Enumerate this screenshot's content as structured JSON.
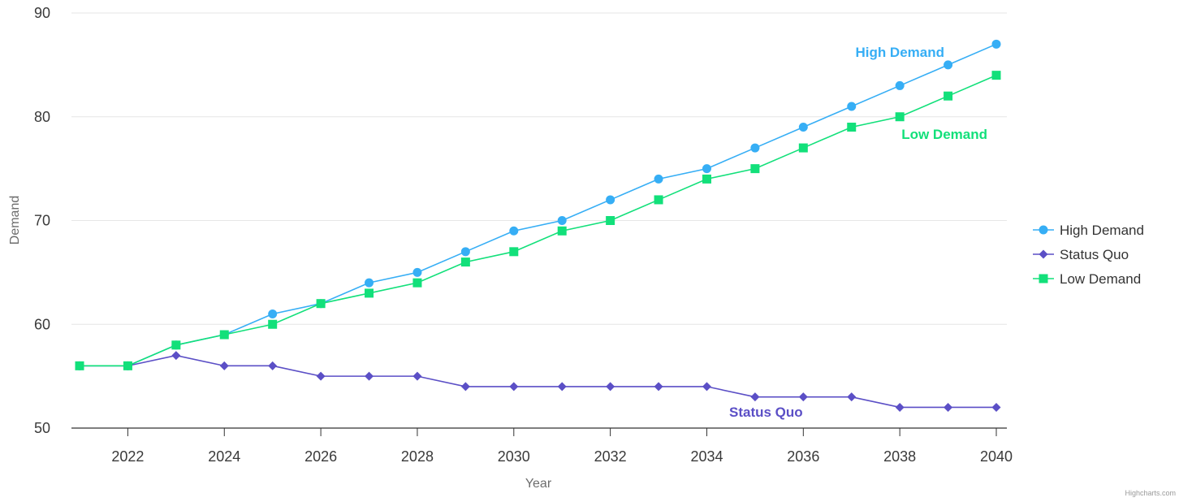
{
  "chart_data": {
    "type": "line",
    "title": "",
    "xlabel": "Year",
    "ylabel": "Demand",
    "xlim": [
      2021,
      2040
    ],
    "ylim": [
      50,
      90
    ],
    "x_ticks": [
      "2022",
      "2024",
      "2026",
      "2028",
      "2030",
      "2032",
      "2034",
      "2036",
      "2038",
      "2040"
    ],
    "y_ticks": [
      "50",
      "60",
      "70",
      "80",
      "90"
    ],
    "grid": true,
    "legend_position": "right",
    "x": [
      2021,
      2022,
      2023,
      2024,
      2025,
      2026,
      2027,
      2028,
      2029,
      2030,
      2031,
      2032,
      2033,
      2034,
      2035,
      2036,
      2037,
      2038,
      2039,
      2040
    ],
    "series": [
      {
        "name": "High Demand",
        "color": "#36aef5",
        "marker": "circle",
        "values": [
          56,
          56,
          58,
          59,
          61,
          62,
          64,
          65,
          67,
          69,
          70,
          72,
          74,
          75,
          77,
          79,
          81,
          83,
          85,
          87
        ]
      },
      {
        "name": "Status Quo",
        "color": "#5b4fc6",
        "marker": "diamond",
        "values": [
          56,
          56,
          57,
          56,
          56,
          55,
          55,
          55,
          54,
          54,
          54,
          54,
          54,
          54,
          53,
          53,
          53,
          52,
          52,
          52
        ]
      },
      {
        "name": "Low Demand",
        "color": "#12e07a",
        "marker": "square",
        "values": [
          56,
          56,
          58,
          59,
          60,
          62,
          63,
          64,
          66,
          67,
          69,
          70,
          72,
          74,
          75,
          77,
          79,
          80,
          82,
          84
        ]
      }
    ],
    "annotations": [
      {
        "text": "High Demand",
        "color": "#36aef5"
      },
      {
        "text": "Low Demand",
        "color": "#12e07a"
      },
      {
        "text": "Status Quo",
        "color": "#5b4fc6"
      }
    ],
    "credit": "Highcharts.com"
  }
}
